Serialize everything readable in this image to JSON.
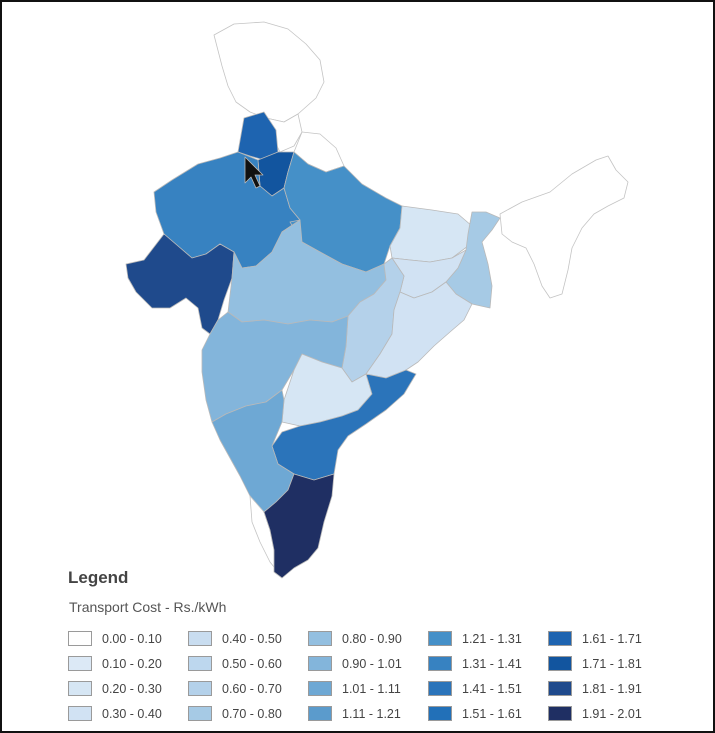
{
  "legend": {
    "title": "Legend",
    "subtitle": "Transport Cost - Rs./kWh",
    "items": [
      {
        "label": "0.00 - 0.10",
        "color": "#ffffff"
      },
      {
        "label": "0.10 - 0.20",
        "color": "#dce9f6"
      },
      {
        "label": "0.20 - 0.30",
        "color": "#d6e6f4"
      },
      {
        "label": "0.30 - 0.40",
        "color": "#d1e2f3"
      },
      {
        "label": "0.40 - 0.50",
        "color": "#c9ddf0"
      },
      {
        "label": "0.50 - 0.60",
        "color": "#bdd7ee"
      },
      {
        "label": "0.60 - 0.70",
        "color": "#b4d1ea"
      },
      {
        "label": "0.70 - 0.80",
        "color": "#a6cae5"
      },
      {
        "label": "0.80 - 0.90",
        "color": "#93bfe0"
      },
      {
        "label": "0.90 - 1.01",
        "color": "#83b5db"
      },
      {
        "label": "1.01 - 1.11",
        "color": "#6ea8d4"
      },
      {
        "label": "1.11 - 1.21",
        "color": "#5b9bcc"
      },
      {
        "label": "1.21 - 1.31",
        "color": "#4590c8"
      },
      {
        "label": "1.31 - 1.41",
        "color": "#3782c1"
      },
      {
        "label": "1.41 - 1.51",
        "color": "#2b74ba"
      },
      {
        "label": "1.51 - 1.61",
        "color": "#2270b8"
      },
      {
        "label": "1.61 - 1.71",
        "color": "#1e64b0"
      },
      {
        "label": "1.71 - 1.81",
        "color": "#12559f"
      },
      {
        "label": "1.81 - 1.91",
        "color": "#1f4a8c"
      },
      {
        "label": "1.91 - 2.01",
        "color": "#1f2f63"
      }
    ]
  },
  "map_regions": [
    {
      "name": "jammu-kashmir",
      "legend_label": "0.00 - 0.10",
      "color": "#ffffff"
    },
    {
      "name": "himachal-pradesh",
      "legend_label": "0.00 - 0.10",
      "color": "#ffffff"
    },
    {
      "name": "uttarakhand",
      "legend_label": "0.00 - 0.10",
      "color": "#ffffff"
    },
    {
      "name": "northeast",
      "legend_label": "0.00 - 0.10",
      "color": "#ffffff"
    },
    {
      "name": "kerala",
      "legend_label": "0.00 - 0.10",
      "color": "#ffffff"
    },
    {
      "name": "punjab",
      "legend_label": "1.61 - 1.71",
      "color": "#1e64b0"
    },
    {
      "name": "haryana-delhi",
      "legend_label": "1.71 - 1.81",
      "color": "#12559f"
    },
    {
      "name": "rajasthan",
      "legend_label": "1.31 - 1.41",
      "color": "#3782c1"
    },
    {
      "name": "gujarat",
      "legend_label": "1.81 - 1.91",
      "color": "#1f4a8c"
    },
    {
      "name": "uttar-pradesh",
      "legend_label": "1.21 - 1.31",
      "color": "#4590c8"
    },
    {
      "name": "bihar",
      "legend_label": "0.20 - 0.30",
      "color": "#d6e6f4"
    },
    {
      "name": "west-bengal",
      "legend_label": "0.70 - 0.80",
      "color": "#a6cae5"
    },
    {
      "name": "jharkhand",
      "legend_label": "0.30 - 0.40",
      "color": "#d1e2f3"
    },
    {
      "name": "madhya-pradesh",
      "legend_label": "0.80 - 0.90",
      "color": "#93bfe0"
    },
    {
      "name": "chhattisgarh",
      "legend_label": "0.60 - 0.70",
      "color": "#b4d1ea"
    },
    {
      "name": "odisha",
      "legend_label": "0.30 - 0.40",
      "color": "#d1e2f3"
    },
    {
      "name": "maharashtra",
      "legend_label": "0.90 - 1.01",
      "color": "#83b5db"
    },
    {
      "name": "telangana",
      "legend_label": "0.20 - 0.30",
      "color": "#d6e6f4"
    },
    {
      "name": "andhra-pradesh",
      "legend_label": "1.41 - 1.51",
      "color": "#2b74ba"
    },
    {
      "name": "karnataka",
      "legend_label": "1.01 - 1.11",
      "color": "#6ea8d4"
    },
    {
      "name": "tamil-nadu",
      "legend_label": "1.91 - 2.01",
      "color": "#1f2f63"
    }
  ],
  "cursor": {
    "icon": "arrow-cursor-icon"
  }
}
